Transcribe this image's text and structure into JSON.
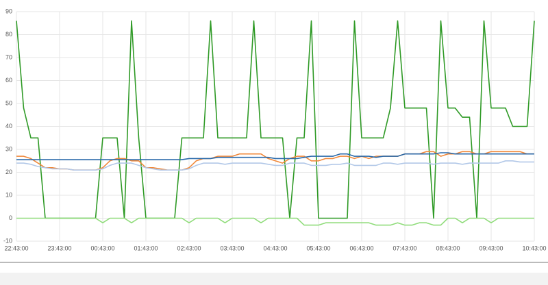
{
  "chart_data": {
    "type": "line",
    "x": [
      0,
      10,
      20,
      30,
      40,
      50,
      60,
      70,
      80,
      90,
      100,
      110,
      120,
      130,
      140,
      150,
      160,
      170,
      180,
      190,
      200,
      210,
      220,
      230,
      240,
      250,
      260,
      270,
      280,
      290,
      300,
      310,
      320,
      330,
      340,
      350,
      360,
      370,
      380,
      390,
      400,
      410,
      420,
      430,
      440,
      450,
      460,
      470,
      480,
      490,
      500,
      510,
      520,
      530,
      540,
      550,
      560,
      570,
      580,
      590,
      600,
      610,
      620,
      630,
      640,
      650,
      660,
      670,
      680,
      690,
      700,
      710,
      720
    ],
    "xlim": [
      0,
      720
    ],
    "xticks": [
      {
        "value": 0,
        "label": "22:43:00"
      },
      {
        "value": 60,
        "label": "23:43:00"
      },
      {
        "value": 120,
        "label": "00:43:00"
      },
      {
        "value": 180,
        "label": "01:43:00"
      },
      {
        "value": 240,
        "label": "02:43:00"
      },
      {
        "value": 300,
        "label": "03:43:00"
      },
      {
        "value": 360,
        "label": "04:43:00"
      },
      {
        "value": 420,
        "label": "05:43:00"
      },
      {
        "value": 480,
        "label": "06:43:00"
      },
      {
        "value": 540,
        "label": "07:43:00"
      },
      {
        "value": 600,
        "label": "08:43:00"
      },
      {
        "value": 660,
        "label": "09:43:00"
      },
      {
        "value": 720,
        "label": "10:43:00"
      }
    ],
    "ylim": [
      -10,
      90
    ],
    "yticks": [
      -10,
      0,
      10,
      20,
      30,
      40,
      50,
      60,
      70,
      80,
      90
    ],
    "grid": true,
    "series": [
      {
        "color": "#2f9a26",
        "values": [
          86,
          48,
          35,
          35,
          0,
          0,
          0,
          0,
          0,
          0,
          0,
          0,
          35,
          35,
          35,
          0,
          86,
          35,
          0,
          0,
          0,
          0,
          0,
          35,
          35,
          35,
          35,
          86,
          35,
          35,
          35,
          35,
          35,
          86,
          35,
          35,
          35,
          35,
          0,
          35,
          35,
          86,
          0,
          0,
          0,
          0,
          0,
          86,
          35,
          35,
          35,
          35,
          48,
          86,
          48,
          48,
          48,
          48,
          0,
          86,
          48,
          48,
          44,
          44,
          0,
          86,
          48,
          48,
          48,
          40,
          40,
          40,
          86
        ]
      },
      {
        "color": "#8fdc7a",
        "values": [
          0,
          0,
          0,
          0,
          0,
          0,
          0,
          0,
          0,
          0,
          0,
          0,
          -2,
          0,
          0,
          0,
          -2,
          0,
          0,
          0,
          0,
          0,
          0,
          0,
          -2,
          0,
          0,
          0,
          0,
          -2,
          0,
          0,
          0,
          0,
          -2,
          0,
          0,
          0,
          0,
          0,
          -3,
          -3,
          -3,
          -2,
          -2,
          -2,
          -2,
          -2,
          -2,
          -2,
          -3,
          -3,
          -3,
          -2,
          -3,
          -3,
          -2,
          -2,
          -3,
          -3,
          0,
          0,
          -2,
          0,
          0,
          0,
          -2,
          0,
          0,
          0,
          0,
          0,
          0
        ]
      },
      {
        "color": "#f0883a",
        "values": [
          27,
          27,
          26,
          24,
          22,
          22,
          21.5,
          21.5,
          21,
          21,
          21,
          21,
          22,
          25,
          26,
          26,
          25,
          25,
          22,
          22,
          21.5,
          21,
          21,
          21,
          22,
          25,
          26,
          26,
          27,
          27,
          27,
          28,
          28,
          28,
          28,
          26,
          25,
          24,
          26,
          27,
          27,
          25,
          25,
          26,
          26,
          27,
          27,
          26,
          27,
          26,
          27,
          27,
          27,
          27,
          28,
          28,
          28,
          29,
          29,
          27,
          28,
          28,
          29,
          29,
          28,
          28,
          29,
          29,
          29,
          29,
          29,
          28,
          28
        ]
      },
      {
        "color": "#b2c8e8",
        "values": [
          24,
          24,
          23.5,
          22.5,
          22,
          21.5,
          21.5,
          21.5,
          21,
          21,
          21,
          21,
          21.5,
          23,
          24,
          24,
          24,
          23,
          22,
          21.5,
          21,
          21,
          21,
          21,
          21.5,
          23,
          24,
          24,
          24,
          23.5,
          24,
          24,
          24,
          24,
          24,
          23.5,
          23,
          23,
          24,
          24,
          24,
          23,
          23,
          23,
          23.5,
          23.5,
          24,
          23,
          23,
          23,
          23,
          24,
          24,
          23.5,
          24,
          24,
          24,
          24,
          23.5,
          24,
          24,
          24,
          23.5,
          24,
          24,
          24,
          24,
          24,
          25,
          25,
          24.5,
          24.5,
          24.5
        ]
      },
      {
        "color": "#2a6aaa",
        "values": [
          25.5,
          25.5,
          25.5,
          25.5,
          25.5,
          25.5,
          25.5,
          25.5,
          25.5,
          25.5,
          25.5,
          25.5,
          25.5,
          25.5,
          25.5,
          25.5,
          25.5,
          25.5,
          25.5,
          25.5,
          25.5,
          25.5,
          25.5,
          25.5,
          26,
          26,
          26,
          26,
          26.5,
          26.5,
          26.5,
          26.5,
          26.5,
          26.5,
          26.5,
          26.5,
          26,
          26,
          26,
          26,
          26.5,
          27,
          27,
          27,
          27,
          28,
          28,
          27,
          27,
          27,
          26.5,
          27,
          27,
          27,
          28,
          28,
          28,
          28,
          28,
          28.5,
          28.5,
          28,
          28,
          28,
          28,
          28,
          28,
          28,
          28,
          28,
          28,
          28,
          28
        ]
      }
    ]
  }
}
